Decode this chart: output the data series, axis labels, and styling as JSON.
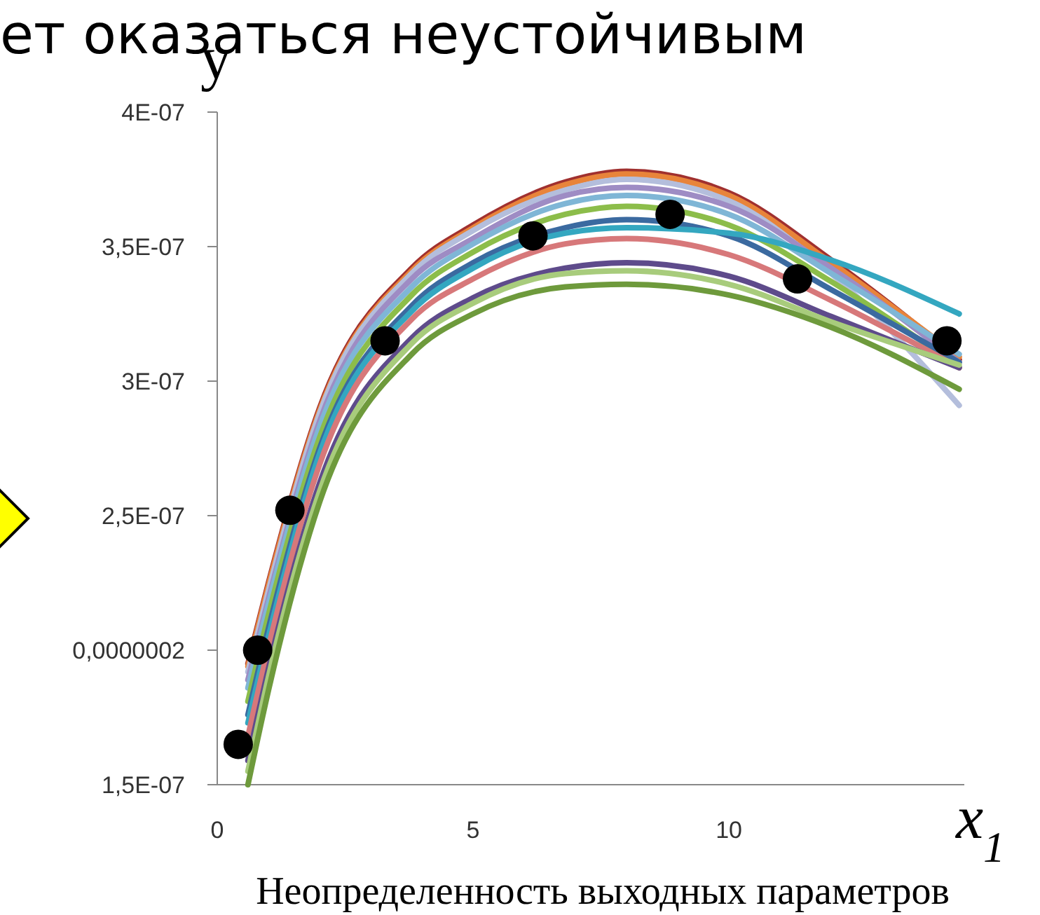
{
  "chart_data": {
    "type": "line",
    "title": "ет оказаться неустойчивым",
    "ylabel": "y",
    "xlabel": "x$_{1}$",
    "annotations": [
      "Неопределенность выходных параметров"
    ],
    "x": [
      0.6,
      1,
      2,
      3.8,
      5,
      6.8,
      8,
      10,
      12,
      14.5
    ],
    "xlim": [
      0,
      14.6
    ],
    "xticks": [
      0,
      5,
      10
    ],
    "ylim": [
      1.5e-07,
      4e-07
    ],
    "yticks": [
      {
        "value": 1.5e-07,
        "label": "1,5E-07"
      },
      {
        "value": 2e-07,
        "label": "0,0000002"
      },
      {
        "value": 2.5e-07,
        "label": "2,5E-07"
      },
      {
        "value": 3e-07,
        "label": "3E-07"
      },
      {
        "value": 3.5e-07,
        "label": "3,5E-07"
      },
      {
        "value": 4e-07,
        "label": "4E-07"
      }
    ],
    "grid": false,
    "marker": "none",
    "line_style": "solid",
    "series": [
      {
        "color": "#a0302f",
        "values": [
          1.95e-07,
          2.25e-07,
          2.9e-07,
          3.42e-07,
          3.58e-07,
          3.74e-07,
          3.78e-07,
          3.7e-07,
          3.45e-07,
          3.08e-07
        ]
      },
      {
        "color": "#e8843a",
        "values": [
          1.94e-07,
          2.24e-07,
          2.89e-07,
          3.41e-07,
          3.57e-07,
          3.73e-07,
          3.77e-07,
          3.69e-07,
          3.44e-07,
          3.09e-07
        ]
      },
      {
        "color": "#b4bedc",
        "values": [
          1.92e-07,
          2.22e-07,
          2.88e-07,
          3.4e-07,
          3.56e-07,
          3.71e-07,
          3.75e-07,
          3.67e-07,
          3.4e-07,
          2.91e-07
        ]
      },
      {
        "color": "#9e8cc4",
        "values": [
          1.89e-07,
          2.19e-07,
          2.85e-07,
          3.38e-07,
          3.53e-07,
          3.69e-07,
          3.72e-07,
          3.65e-07,
          3.42e-07,
          3.07e-07
        ]
      },
      {
        "color": "#7fb6d6",
        "values": [
          1.86e-07,
          2.17e-07,
          2.83e-07,
          3.35e-07,
          3.51e-07,
          3.66e-07,
          3.69e-07,
          3.62e-07,
          3.4e-07,
          3.1e-07
        ]
      },
      {
        "color": "#8cbd4a",
        "values": [
          1.81e-07,
          2.13e-07,
          2.79e-07,
          3.32e-07,
          3.48e-07,
          3.62e-07,
          3.65e-07,
          3.58e-07,
          3.37e-07,
          3.05e-07
        ]
      },
      {
        "color": "#3b6aa0",
        "values": [
          1.76e-07,
          2.08e-07,
          2.75e-07,
          3.28e-07,
          3.44e-07,
          3.57e-07,
          3.6e-07,
          3.54e-07,
          3.34e-07,
          3.07e-07
        ]
      },
      {
        "color": "#34a7c0",
        "values": [
          1.73e-07,
          2.05e-07,
          2.73e-07,
          3.26e-07,
          3.42e-07,
          3.55e-07,
          3.57e-07,
          3.55e-07,
          3.45e-07,
          3.25e-07
        ]
      },
      {
        "color": "#d7787a",
        "values": [
          1.68e-07,
          2.01e-07,
          2.69e-07,
          3.23e-07,
          3.38e-07,
          3.51e-07,
          3.53e-07,
          3.47e-07,
          3.3e-07,
          3.05e-07
        ]
      },
      {
        "color": "#5e4b8b",
        "values": [
          1.59e-07,
          1.93e-07,
          2.62e-07,
          3.16e-07,
          3.31e-07,
          3.42e-07,
          3.44e-07,
          3.39e-07,
          3.24e-07,
          3.05e-07
        ]
      },
      {
        "color": "#a8cc7c",
        "values": [
          1.55e-07,
          1.9e-07,
          2.59e-07,
          3.14e-07,
          3.29e-07,
          3.4e-07,
          3.41e-07,
          3.36e-07,
          3.22e-07,
          3.06e-07
        ]
      },
      {
        "color": "#6e9a3c",
        "values": [
          1.5e-07,
          1.85e-07,
          2.55e-07,
          3.1e-07,
          3.25e-07,
          3.35e-07,
          3.36e-07,
          3.32e-07,
          3.2e-07,
          2.97e-07
        ]
      },
      {
        "type": "scatter",
        "marker": "circle",
        "color": "#000000",
        "x": [
          0.41,
          0.79,
          1.42,
          3.28,
          6.17,
          8.85,
          11.34,
          14.26
        ],
        "values": [
          1.65e-07,
          2e-07,
          2.52e-07,
          3.15e-07,
          3.54e-07,
          3.62e-07,
          3.38e-07,
          3.15e-07
        ]
      }
    ]
  }
}
